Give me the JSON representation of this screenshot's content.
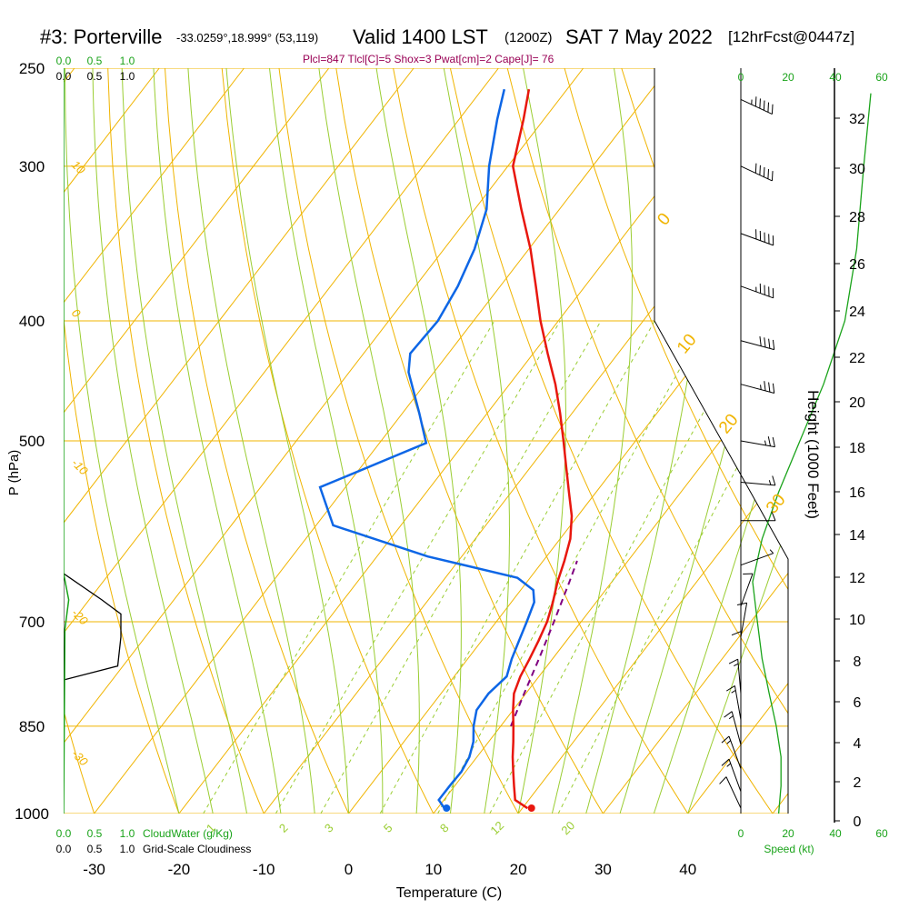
{
  "header": {
    "station": "#3: Porterville",
    "coords": "-33.0259°,18.999° (53,119)",
    "valid": "Valid 1400 LST",
    "utc": "(1200Z)",
    "date": "SAT 7 May 2022",
    "forecast": "[12hrFcst@0447z]",
    "indices": "Plcl=847 Tlcl[C]=5 Shox=3 Pwat[cm]=2 Cape[J]= 76"
  },
  "colors": {
    "isotherm": "#f0b400",
    "dry_adiabat": "#f0b400",
    "moist_adiabat": "#9acd32",
    "mixing_ratio": "#9acd32",
    "temperature": "#e8170e",
    "dewpoint": "#0d66e6",
    "parcel": "#800080",
    "cloud_water": "#1aa31a",
    "cloudiness": "#000000"
  },
  "chart_data": {
    "type": "skew-t",
    "title": "#3: Porterville Valid 1400 LST (1200Z) SAT 7 May 2022",
    "xlabel": "Temperature (C)",
    "ylabel": "P (hPa)",
    "y2label": "Height (1000 Feet)",
    "x_range": [
      -36,
      47
    ],
    "p_range": [
      1000,
      250
    ],
    "pressure_ticks": [
      250,
      300,
      400,
      500,
      700,
      850,
      1000
    ],
    "temperature_ticks": [
      -30,
      -20,
      -10,
      0,
      10,
      20,
      30,
      40
    ],
    "height_ticks": [
      0,
      2,
      4,
      6,
      8,
      10,
      12,
      14,
      16,
      18,
      20,
      22,
      24,
      26,
      28,
      30,
      32
    ],
    "dry_adiabat_labels": [
      "10",
      "0",
      "-10",
      "-20",
      "-30"
    ],
    "moist_adiabat_labels": [
      "0",
      "10",
      "20",
      "30"
    ],
    "mixing_ratio_labels": [
      "1",
      "2",
      "3",
      "5",
      "8",
      "12",
      "20"
    ],
    "temperature_profile": [
      {
        "p": 990,
        "t": 20.6
      },
      {
        "p": 975,
        "t": 18.4
      },
      {
        "p": 950,
        "t": 17.0
      },
      {
        "p": 925,
        "t": 15.6
      },
      {
        "p": 900,
        "t": 14.2
      },
      {
        "p": 875,
        "t": 12.9
      },
      {
        "p": 850,
        "t": 11.5
      },
      {
        "p": 825,
        "t": 10.0
      },
      {
        "p": 800,
        "t": 8.6
      },
      {
        "p": 775,
        "t": 7.8
      },
      {
        "p": 750,
        "t": 7.3
      },
      {
        "p": 725,
        "t": 6.7
      },
      {
        "p": 700,
        "t": 6.0
      },
      {
        "p": 675,
        "t": 4.9
      },
      {
        "p": 650,
        "t": 3.6
      },
      {
        "p": 625,
        "t": 2.5
      },
      {
        "p": 600,
        "t": 1.2
      },
      {
        "p": 575,
        "t": -0.7
      },
      {
        "p": 550,
        "t": -3.2
      },
      {
        "p": 525,
        "t": -5.8
      },
      {
        "p": 500,
        "t": -8.5
      },
      {
        "p": 475,
        "t": -11.4
      },
      {
        "p": 450,
        "t": -14.6
      },
      {
        "p": 425,
        "t": -18.3
      },
      {
        "p": 400,
        "t": -22.1
      },
      {
        "p": 375,
        "t": -25.8
      },
      {
        "p": 350,
        "t": -29.8
      },
      {
        "p": 325,
        "t": -34.5
      },
      {
        "p": 300,
        "t": -39.4
      },
      {
        "p": 275,
        "t": -42.4
      },
      {
        "p": 260,
        "t": -44.5
      }
    ],
    "dewpoint_profile": [
      {
        "p": 990,
        "t": 10.8
      },
      {
        "p": 975,
        "t": 9.4
      },
      {
        "p": 950,
        "t": 9.4
      },
      {
        "p": 925,
        "t": 9.5
      },
      {
        "p": 900,
        "t": 9.1
      },
      {
        "p": 875,
        "t": 8.2
      },
      {
        "p": 850,
        "t": 6.8
      },
      {
        "p": 825,
        "t": 5.7
      },
      {
        "p": 800,
        "t": 5.6
      },
      {
        "p": 775,
        "t": 6.2
      },
      {
        "p": 750,
        "t": 5.2
      },
      {
        "p": 725,
        "t": 4.4
      },
      {
        "p": 700,
        "t": 3.6
      },
      {
        "p": 675,
        "t": 2.7
      },
      {
        "p": 660,
        "t": 1.5
      },
      {
        "p": 645,
        "t": -1.5
      },
      {
        "p": 620,
        "t": -14.0
      },
      {
        "p": 585,
        "t": -28.0
      },
      {
        "p": 545,
        "t": -33.0
      },
      {
        "p": 502,
        "t": -24.5
      },
      {
        "p": 475,
        "t": -28.0
      },
      {
        "p": 440,
        "t": -33.0
      },
      {
        "p": 425,
        "t": -34.5
      },
      {
        "p": 400,
        "t": -34.2
      },
      {
        "p": 375,
        "t": -35.0
      },
      {
        "p": 350,
        "t": -36.4
      },
      {
        "p": 325,
        "t": -38.6
      },
      {
        "p": 300,
        "t": -42.2
      },
      {
        "p": 275,
        "t": -45.5
      },
      {
        "p": 260,
        "t": -47.4
      }
    ],
    "parcel_profile": [
      {
        "p": 850,
        "t": 11.2
      },
      {
        "p": 800,
        "t": 9.8
      },
      {
        "p": 750,
        "t": 8.4
      },
      {
        "p": 700,
        "t": 6.8
      },
      {
        "p": 650,
        "t": 5.0
      },
      {
        "p": 625,
        "t": 4.0
      }
    ],
    "cloud_water_label": "CloudWater (g/Kg)",
    "cloudiness_label": "Grid-Scale Cloudiness",
    "cloud_water_ticks": [
      "0.0",
      "0.5",
      "1.0"
    ],
    "cloudiness_ticks": [
      "0.0",
      "0.5",
      "1.0"
    ],
    "cloudiness_profile": [
      {
        "p": 640,
        "v": 0.0
      },
      {
        "p": 672,
        "v": 0.6
      },
      {
        "p": 690,
        "v": 0.9
      },
      {
        "p": 720,
        "v": 0.9
      },
      {
        "p": 760,
        "v": 0.85
      },
      {
        "p": 780,
        "v": 0.0
      }
    ],
    "cloud_water_profile": [
      {
        "p": 250,
        "v": 0.0
      },
      {
        "p": 640,
        "v": 0.0
      },
      {
        "p": 672,
        "v": 0.08
      },
      {
        "p": 710,
        "v": 0.02
      },
      {
        "p": 1000,
        "v": 0.0
      }
    ],
    "speed_label": "Speed (kt)",
    "speed_ticks": [
      "0",
      "20",
      "40",
      "60"
    ],
    "wind_profile": [
      {
        "p": 265,
        "dir": 295,
        "spd": 55
      },
      {
        "p": 300,
        "dir": 295,
        "spd": 50
      },
      {
        "p": 340,
        "dir": 290,
        "spd": 48
      },
      {
        "p": 375,
        "dir": 290,
        "spd": 45
      },
      {
        "p": 415,
        "dir": 285,
        "spd": 40
      },
      {
        "p": 450,
        "dir": 285,
        "spd": 35
      },
      {
        "p": 500,
        "dir": 280,
        "spd": 25
      },
      {
        "p": 540,
        "dir": 275,
        "spd": 15
      },
      {
        "p": 580,
        "dir": 270,
        "spd": 8
      },
      {
        "p": 630,
        "dir": 250,
        "spd": 5
      },
      {
        "p": 680,
        "dir": 200,
        "spd": 8
      },
      {
        "p": 720,
        "dir": 190,
        "spd": 10
      },
      {
        "p": 760,
        "dir": 180,
        "spd": 12
      },
      {
        "p": 800,
        "dir": 175,
        "spd": 14
      },
      {
        "p": 840,
        "dir": 170,
        "spd": 16
      },
      {
        "p": 880,
        "dir": 165,
        "spd": 17
      },
      {
        "p": 920,
        "dir": 160,
        "spd": 17
      },
      {
        "p": 960,
        "dir": 160,
        "spd": 15
      },
      {
        "p": 990,
        "dir": 155,
        "spd": 12
      }
    ],
    "speed_profile": [
      {
        "p": 1000,
        "spd": 16
      },
      {
        "p": 950,
        "spd": 17
      },
      {
        "p": 900,
        "spd": 17
      },
      {
        "p": 850,
        "spd": 15
      },
      {
        "p": 800,
        "spd": 12
      },
      {
        "p": 750,
        "spd": 9
      },
      {
        "p": 700,
        "spd": 7
      },
      {
        "p": 650,
        "spd": 5
      },
      {
        "p": 600,
        "spd": 9
      },
      {
        "p": 550,
        "spd": 16
      },
      {
        "p": 500,
        "spd": 25
      },
      {
        "p": 450,
        "spd": 35
      },
      {
        "p": 400,
        "spd": 44
      },
      {
        "p": 350,
        "spd": 49
      },
      {
        "p": 300,
        "spd": 52
      },
      {
        "p": 262,
        "spd": 55
      }
    ]
  }
}
